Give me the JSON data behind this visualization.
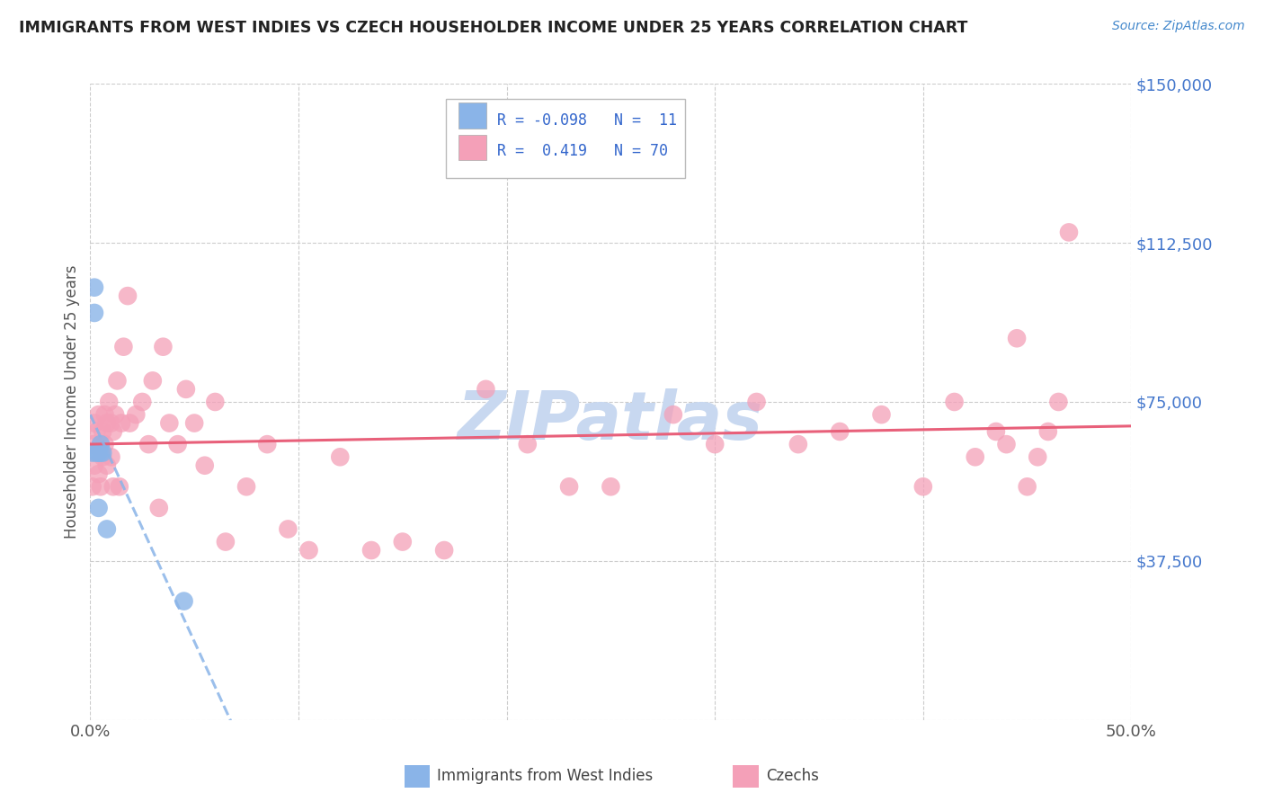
{
  "title": "IMMIGRANTS FROM WEST INDIES VS CZECH HOUSEHOLDER INCOME UNDER 25 YEARS CORRELATION CHART",
  "source": "Source: ZipAtlas.com",
  "ylabel": "Householder Income Under 25 years",
  "xlim": [
    0,
    0.5
  ],
  "ylim": [
    0,
    150000
  ],
  "yticks": [
    0,
    37500,
    75000,
    112500,
    150000
  ],
  "ytick_labels": [
    "",
    "$37,500",
    "$75,000",
    "$112,500",
    "$150,000"
  ],
  "xticks": [
    0.0,
    0.5
  ],
  "xtick_labels": [
    "0.0%",
    "50.0%"
  ],
  "background_color": "#ffffff",
  "grid_color": "#cccccc",
  "color_blue": "#8ab4e8",
  "color_pink": "#f4a0b8",
  "line_blue_color": "#8ab4e8",
  "line_pink_color": "#e8607a",
  "watermark": "ZIPatlas",
  "watermark_color": "#c8d8f0",
  "west_indies_x": [
    0.001,
    0.002,
    0.002,
    0.003,
    0.004,
    0.004,
    0.005,
    0.005,
    0.006,
    0.008,
    0.045
  ],
  "west_indies_y": [
    63000,
    96000,
    102000,
    63000,
    63000,
    50000,
    63000,
    65000,
    63000,
    45000,
    28000
  ],
  "czechs_x": [
    0.001,
    0.001,
    0.002,
    0.002,
    0.003,
    0.003,
    0.004,
    0.004,
    0.005,
    0.005,
    0.006,
    0.006,
    0.007,
    0.007,
    0.008,
    0.008,
    0.009,
    0.01,
    0.01,
    0.011,
    0.011,
    0.012,
    0.013,
    0.014,
    0.015,
    0.016,
    0.018,
    0.019,
    0.022,
    0.025,
    0.028,
    0.03,
    0.033,
    0.035,
    0.038,
    0.042,
    0.046,
    0.05,
    0.055,
    0.06,
    0.065,
    0.075,
    0.085,
    0.095,
    0.105,
    0.12,
    0.135,
    0.15,
    0.17,
    0.19,
    0.21,
    0.23,
    0.25,
    0.28,
    0.3,
    0.32,
    0.34,
    0.36,
    0.38,
    0.4,
    0.415,
    0.425,
    0.435,
    0.44,
    0.445,
    0.45,
    0.455,
    0.46,
    0.465,
    0.47
  ],
  "czechs_y": [
    55000,
    65000,
    60000,
    70000,
    63000,
    68000,
    58000,
    72000,
    65000,
    55000,
    62000,
    68000,
    65000,
    72000,
    70000,
    60000,
    75000,
    70000,
    62000,
    68000,
    55000,
    72000,
    80000,
    55000,
    70000,
    88000,
    100000,
    70000,
    72000,
    75000,
    65000,
    80000,
    50000,
    88000,
    70000,
    65000,
    78000,
    70000,
    60000,
    75000,
    42000,
    55000,
    65000,
    45000,
    40000,
    62000,
    40000,
    42000,
    40000,
    78000,
    65000,
    55000,
    55000,
    72000,
    65000,
    75000,
    65000,
    68000,
    72000,
    55000,
    75000,
    62000,
    68000,
    65000,
    90000,
    55000,
    62000,
    68000,
    75000,
    115000
  ]
}
